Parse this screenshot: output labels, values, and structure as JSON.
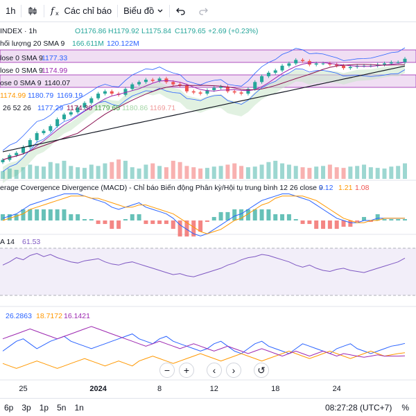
{
  "toolbar": {
    "interval": "1h",
    "indicators_label": "Các chỉ báo",
    "chart_label": "Biểu đồ"
  },
  "header": {
    "symbol": "INDEX · 1h",
    "o": "O1176.86",
    "h": "H1179.92",
    "l": "L1175.84",
    "c": "C1179.65",
    "chg": "+2.69 (+0.23%)"
  },
  "legend": {
    "volume": {
      "label": "hối lượng 20 SMA 9",
      "v1": "166.611M",
      "v2": "120.122M"
    },
    "sma1": {
      "label": "lose 0 SMA 9",
      "value": "1177.33"
    },
    "sma2": {
      "label": "lose 0 SMA 9",
      "value": "1174.99"
    },
    "sma3": {
      "label": "ose 0 SMA 9",
      "value": "1140.07"
    },
    "bb": {
      "v1": "1174.99",
      "v2": "1180.79",
      "v3": "1169.19"
    },
    "ichimoku": {
      "label": "26 52 26",
      "v1": "1177.29",
      "v2": "1174.30",
      "v3": "1179.65",
      "v4": "1180.86",
      "v5": "1169.71"
    },
    "macd": {
      "label": "erage Covergence Divergence (MACD) - Chỉ báo Biến động Phân kỳ/Hội tụ trung bình 12 26 close 9",
      "v1": "0.12",
      "v2": "1.21",
      "v3": "1.08"
    },
    "rsi": {
      "label": "A 14",
      "value": "61.53"
    },
    "dmi": {
      "v1": "26.2863",
      "v2": "18.7172",
      "v3": "16.1421"
    }
  },
  "x_axis": {
    "ticks": [
      "25",
      "2024",
      "8",
      "12",
      "18",
      "24"
    ]
  },
  "bottom": {
    "ranges": [
      "6p",
      "3p",
      "1p",
      "5n",
      "1n"
    ],
    "time": "08:27:28 (UTC+7)",
    "percent": "%"
  },
  "colors": {
    "up": "#26a69a",
    "down": "#ef5350",
    "sma_purple": "#9c27b0",
    "bb_blue": "#2962ff",
    "macd_blue": "#2962ff",
    "signal_orange": "#ff9800",
    "rsi": "#7e57c2",
    "dmi_blue": "#2962ff",
    "dmi_orange": "#ff9800",
    "dmi_purple": "#9c27b0"
  },
  "chart_data": [
    {
      "type": "line",
      "name": "price",
      "x": [
        0,
        1,
        2,
        3,
        4,
        5,
        6,
        7,
        8,
        9,
        10,
        11,
        12,
        13,
        14,
        15,
        16,
        17,
        18,
        19,
        20,
        21,
        22,
        23,
        24,
        25,
        26,
        27,
        28,
        29,
        30,
        31,
        32,
        33,
        34,
        35,
        36,
        37,
        38,
        39,
        40,
        41,
        42,
        43,
        44,
        45,
        46,
        47,
        48,
        49,
        50,
        51,
        52,
        53,
        54,
        55,
        56,
        57,
        58,
        59
      ],
      "close": [
        1093,
        1097,
        1099,
        1104,
        1110,
        1116,
        1118,
        1122,
        1128,
        1132,
        1134,
        1138,
        1142,
        1146,
        1150,
        1152,
        1150,
        1149,
        1154,
        1158,
        1160,
        1162,
        1161,
        1163,
        1160,
        1158,
        1157,
        1152,
        1151,
        1150,
        1153,
        1155,
        1156,
        1152,
        1151,
        1150,
        1154,
        1160,
        1165,
        1168,
        1170,
        1174,
        1176,
        1179,
        1178,
        1175,
        1176,
        1176,
        1175,
        1174,
        1172,
        1173,
        1174,
        1174,
        1174,
        1175,
        1176,
        1177,
        1177,
        1180
      ],
      "ylim": [
        1085,
        1190
      ]
    },
    {
      "type": "bar",
      "name": "volume",
      "values": [
        60,
        80,
        70,
        90,
        110,
        100,
        95,
        130,
        120,
        140,
        100,
        90,
        85,
        110,
        100,
        120,
        130,
        150,
        140,
        90,
        80,
        110,
        120,
        100,
        90,
        140,
        130,
        100,
        90,
        80,
        85,
        95,
        100,
        110,
        120,
        100,
        90,
        95,
        110,
        130,
        140,
        120,
        110,
        100,
        90,
        85,
        95,
        100,
        110,
        90,
        85,
        95,
        100,
        110,
        90,
        85,
        80,
        95,
        100,
        120
      ]
    },
    {
      "type": "line",
      "name": "macd",
      "series": [
        {
          "values": [
            1,
            2,
            3,
            5,
            7,
            8,
            9,
            10,
            11,
            12,
            12,
            12,
            11,
            10,
            9,
            8,
            6,
            5,
            6,
            7,
            8,
            6,
            5,
            4,
            3,
            1,
            -2,
            -4,
            -6,
            -7,
            -6,
            -4,
            -2,
            0,
            2,
            3,
            5,
            7,
            9,
            10,
            11,
            12,
            12,
            11,
            10,
            9,
            7,
            5,
            3,
            1,
            0,
            -1,
            -1,
            0,
            0,
            1,
            1,
            1,
            1,
            1
          ]
        },
        {
          "values": [
            0,
            1,
            2,
            3,
            5,
            6,
            7,
            8,
            9,
            10,
            11,
            11,
            11,
            10,
            10,
            9,
            8,
            7,
            6,
            6,
            7,
            7,
            6,
            5,
            4,
            3,
            1,
            -1,
            -3,
            -5,
            -6,
            -5,
            -4,
            -2,
            0,
            1,
            3,
            5,
            7,
            8,
            10,
            11,
            11,
            11,
            11,
            10,
            9,
            7,
            5,
            3,
            1,
            0,
            -1,
            -1,
            0,
            0,
            1,
            1,
            1,
            1
          ]
        }
      ]
    },
    {
      "type": "line",
      "name": "rsi",
      "values": [
        55,
        58,
        62,
        60,
        64,
        66,
        63,
        65,
        62,
        60,
        58,
        57,
        59,
        60,
        61,
        58,
        56,
        55,
        57,
        58,
        56,
        54,
        52,
        50,
        48,
        46,
        47,
        45,
        44,
        46,
        48,
        50,
        52,
        55,
        57,
        60,
        62,
        63,
        65,
        64,
        62,
        60,
        58,
        55,
        53,
        55,
        52,
        50,
        49,
        51,
        52,
        50,
        49,
        48,
        50,
        52,
        54,
        56,
        58,
        61.53
      ],
      "ylim": [
        20,
        80
      ]
    },
    {
      "type": "line",
      "name": "dmi",
      "series": [
        {
          "values": [
            20,
            24,
            28,
            30,
            26,
            22,
            25,
            28,
            30,
            32,
            28,
            26,
            24,
            22,
            24,
            26,
            28,
            30,
            32,
            34,
            30,
            28,
            26,
            30,
            32,
            28,
            26,
            24,
            22,
            20,
            22,
            26,
            28,
            24,
            20,
            18,
            22,
            26,
            28,
            24,
            22,
            20,
            18,
            22,
            26,
            24,
            22,
            20,
            18,
            22,
            24,
            26,
            22,
            20,
            18,
            20,
            22,
            24,
            25,
            26.2863
          ]
        },
        {
          "values": [
            10,
            8,
            6,
            8,
            10,
            12,
            10,
            8,
            6,
            8,
            10,
            12,
            14,
            12,
            10,
            8,
            10,
            12,
            10,
            8,
            12,
            14,
            16,
            14,
            12,
            10,
            12,
            14,
            16,
            18,
            16,
            14,
            12,
            14,
            16,
            18,
            16,
            14,
            12,
            14,
            16,
            18,
            20,
            18,
            16,
            14,
            16,
            18,
            20,
            18,
            16,
            14,
            16,
            18,
            20,
            18,
            16,
            17,
            18,
            18.7172
          ]
        },
        {
          "values": [
            30,
            32,
            34,
            36,
            38,
            36,
            34,
            32,
            30,
            32,
            34,
            36,
            38,
            40,
            38,
            36,
            34,
            32,
            30,
            28,
            26,
            24,
            26,
            28,
            26,
            24,
            22,
            24,
            26,
            24,
            22,
            20,
            22,
            24,
            22,
            20,
            18,
            20,
            22,
            20,
            18,
            16,
            18,
            20,
            18,
            16,
            18,
            20,
            18,
            16,
            18,
            17,
            16,
            15,
            16,
            17,
            16,
            16,
            16,
            16.1421
          ]
        }
      ]
    }
  ]
}
